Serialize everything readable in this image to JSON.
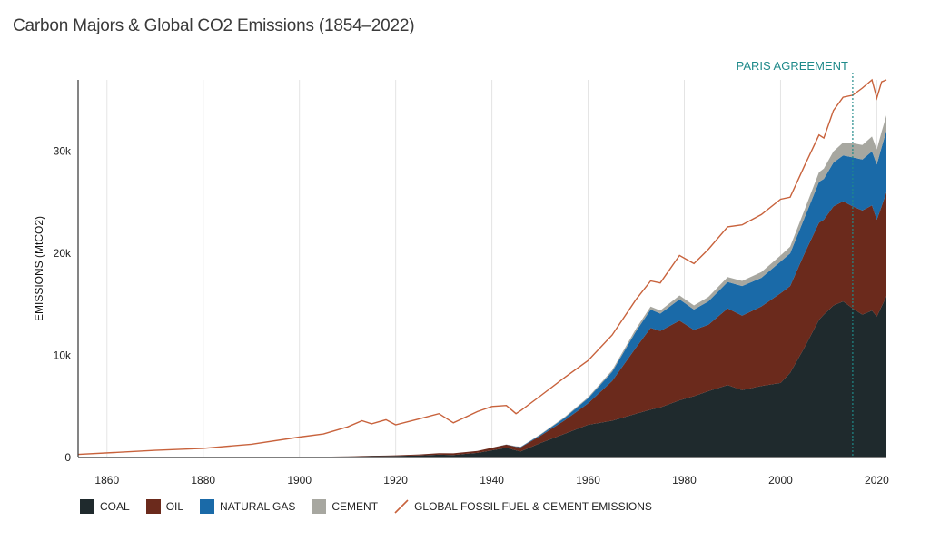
{
  "title": "Carbon Majors & Global CO2 Emissions (1854–2022)",
  "chart_data": {
    "type": "area",
    "title": "Carbon Majors & Global CO2 Emissions (1854–2022)",
    "xlabel": "",
    "ylabel": "EMISSIONS (MtCO2)",
    "xlim": [
      1854,
      2022
    ],
    "ylim": [
      0,
      37000
    ],
    "x_ticks": [
      "1860",
      "1880",
      "1900",
      "1920",
      "1940",
      "1960",
      "1980",
      "2000",
      "2020"
    ],
    "y_ticks": [
      "0",
      "10k",
      "20k",
      "30k"
    ],
    "y_tick_values": [
      0,
      10000,
      20000,
      30000
    ],
    "grid": "vertical",
    "legend_position": "bottom",
    "annotation": {
      "label": "PARIS AGREEMENT",
      "x": 2015
    },
    "x": [
      1854,
      1870,
      1880,
      1890,
      1900,
      1905,
      1910,
      1913,
      1915,
      1918,
      1920,
      1925,
      1929,
      1932,
      1937,
      1940,
      1943,
      1945,
      1946,
      1950,
      1955,
      1960,
      1965,
      1970,
      1973,
      1975,
      1979,
      1982,
      1985,
      1989,
      1992,
      1996,
      2000,
      2002,
      2005,
      2008,
      2009,
      2011,
      2013,
      2015,
      2017,
      2019,
      2020,
      2021,
      2022
    ],
    "series": [
      {
        "name": "COAL",
        "color": "#1f2a2d",
        "values": [
          0,
          10,
          20,
          30,
          50,
          70,
          100,
          120,
          130,
          140,
          150,
          200,
          280,
          250,
          450,
          700,
          950,
          700,
          600,
          1400,
          2300,
          3200,
          3600,
          4300,
          4700,
          4900,
          5600,
          6000,
          6500,
          7100,
          6600,
          7000,
          7300,
          8300,
          10800,
          13500,
          14000,
          14900,
          15300,
          14600,
          14000,
          14400,
          13800,
          14800,
          15800
        ]
      },
      {
        "name": "OIL",
        "color": "#6b2a1c",
        "values": [
          0,
          0,
          0,
          0,
          5,
          10,
          20,
          30,
          40,
          50,
          60,
          100,
          150,
          160,
          200,
          250,
          300,
          350,
          400,
          700,
          1300,
          2100,
          3900,
          6500,
          8000,
          7500,
          7800,
          6500,
          6500,
          7500,
          7300,
          7800,
          8800,
          8500,
          9200,
          9500,
          9300,
          9700,
          9800,
          10000,
          10200,
          10300,
          9500,
          9800,
          10200
        ]
      },
      {
        "name": "NATURAL GAS",
        "color": "#1a6aa8",
        "values": [
          0,
          0,
          0,
          0,
          0,
          0,
          0,
          0,
          0,
          0,
          0,
          0,
          0,
          0,
          0,
          10,
          20,
          30,
          40,
          100,
          250,
          500,
          900,
          1600,
          1800,
          1700,
          2100,
          2000,
          2300,
          2600,
          2900,
          2800,
          3100,
          3200,
          3500,
          4000,
          4000,
          4300,
          4500,
          4800,
          5000,
          5300,
          5400,
          5800,
          6000
        ]
      },
      {
        "name": "CEMENT",
        "color": "#a7a7a0",
        "values": [
          0,
          0,
          0,
          0,
          0,
          0,
          0,
          0,
          0,
          0,
          0,
          0,
          0,
          0,
          0,
          5,
          10,
          20,
          20,
          40,
          70,
          100,
          150,
          250,
          290,
          300,
          380,
          400,
          430,
          480,
          500,
          560,
          600,
          650,
          780,
          950,
          1000,
          1100,
          1250,
          1400,
          1420,
          1450,
          1480,
          1500,
          1520
        ]
      },
      {
        "name": "GLOBAL FOSSIL FUEL & CEMENT EMISSIONS",
        "color": "#c8623c",
        "values": [
          300,
          700,
          900,
          1300,
          2000,
          2300,
          3000,
          3600,
          3300,
          3700,
          3200,
          3800,
          4300,
          3400,
          4500,
          5000,
          5100,
          4300,
          4600,
          6000,
          7800,
          9500,
          12000,
          15500,
          17300,
          17100,
          19800,
          19000,
          20400,
          22600,
          22800,
          23800,
          25300,
          25500,
          28600,
          31600,
          31300,
          34000,
          35300,
          35500,
          36200,
          37000,
          35200,
          36800,
          37000
        ]
      }
    ]
  }
}
